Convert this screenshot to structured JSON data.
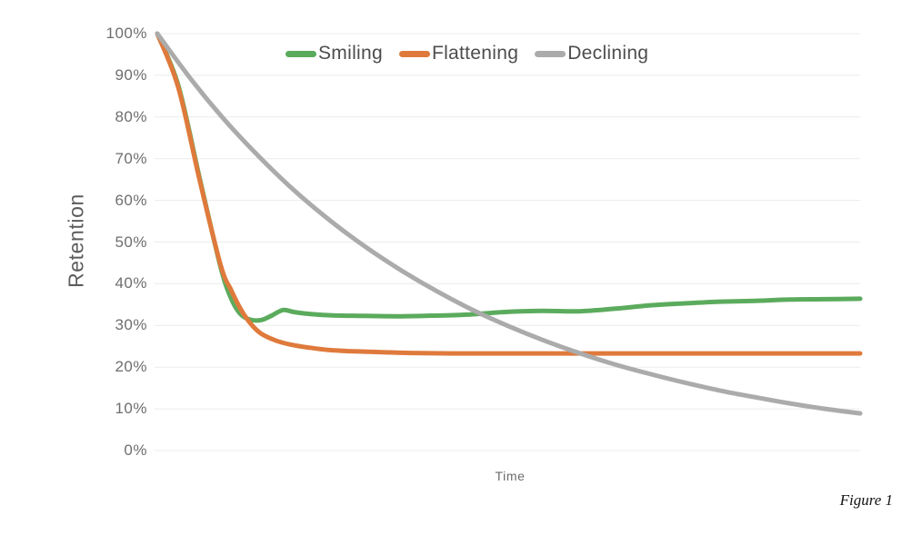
{
  "figure": {
    "caption": "Figure 1"
  },
  "axes": {
    "y_title": "Retention",
    "x_title": "Time",
    "y_ticks": [
      "100%",
      "90%",
      "80%",
      "70%",
      "60%",
      "50%",
      "40%",
      "30%",
      "20%",
      "10%",
      "0%"
    ]
  },
  "colors": {
    "smiling_green": "#5BAB5D",
    "flattening_orange": "#DF7A3C",
    "declining_gray": "#ABABAB",
    "gridline": "#ECECEC",
    "tick_text": "#6E6E6E",
    "legend_text": "#4D4D4D"
  },
  "chart_data": {
    "type": "line",
    "title": "",
    "xlabel": "Time",
    "ylabel": "Retention",
    "ylim": [
      0,
      100
    ],
    "xlim": [
      0,
      100
    ],
    "y_tick_labels": [
      "100%",
      "90%",
      "80%",
      "70%",
      "60%",
      "50%",
      "40%",
      "30%",
      "20%",
      "10%",
      "0%"
    ],
    "x_tick_labels": [],
    "grid": "horizontal-only",
    "legend_position": "top-center",
    "series": [
      {
        "name": "Smiling",
        "color": "#5BAB5D",
        "description": "Drops steeply from 100% to ~31%, small rebound bump to ~34%, plateaus near 32%, then gently climbs to ~36% by the end",
        "points": [
          [
            0,
            100
          ],
          [
            3,
            87.5
          ],
          [
            6,
            65.5
          ],
          [
            9,
            44
          ],
          [
            10.5,
            36.5
          ],
          [
            11.8,
            32.8
          ],
          [
            13.2,
            31.4
          ],
          [
            14.8,
            31.3
          ],
          [
            16.3,
            32.4
          ],
          [
            17.9,
            33.7
          ],
          [
            19.5,
            33.2
          ],
          [
            22,
            32.7
          ],
          [
            25,
            32.4
          ],
          [
            29,
            32.3
          ],
          [
            34,
            32.2
          ],
          [
            38,
            32.3
          ],
          [
            44,
            32.6
          ],
          [
            50,
            33.3
          ],
          [
            55,
            33.5
          ],
          [
            60,
            33.4
          ],
          [
            65,
            34.0
          ],
          [
            70,
            34.8
          ],
          [
            75,
            35.3
          ],
          [
            80,
            35.7
          ],
          [
            85,
            35.9
          ],
          [
            90,
            36.2
          ],
          [
            95,
            36.3
          ],
          [
            100,
            36.4
          ]
        ]
      },
      {
        "name": "Flattening",
        "color": "#DF7A3C",
        "description": "Drops steeply from 100% and flattens to a constant ~23%",
        "points": [
          [
            0,
            100
          ],
          [
            3,
            87
          ],
          [
            6,
            65
          ],
          [
            9,
            44.5
          ],
          [
            10.5,
            38.5
          ],
          [
            12,
            33.5
          ],
          [
            13.5,
            30
          ],
          [
            15,
            27.8
          ],
          [
            17,
            26.3
          ],
          [
            19,
            25.4
          ],
          [
            21.5,
            24.7
          ],
          [
            24.5,
            24.1
          ],
          [
            28,
            23.8
          ],
          [
            32,
            23.6
          ],
          [
            36,
            23.4
          ],
          [
            42,
            23.3
          ],
          [
            50,
            23.3
          ],
          [
            60,
            23.3
          ],
          [
            70,
            23.3
          ],
          [
            80,
            23.3
          ],
          [
            90,
            23.3
          ],
          [
            100,
            23.3
          ]
        ]
      },
      {
        "name": "Declining",
        "color": "#ABABAB",
        "description": "Smooth exponential decay from 100% down to ~9%",
        "points": [
          [
            0,
            100
          ],
          [
            5,
            88.6
          ],
          [
            10,
            78.5
          ],
          [
            15,
            69.6
          ],
          [
            20,
            61.6
          ],
          [
            25,
            54.6
          ],
          [
            30,
            48.4
          ],
          [
            35,
            42.9
          ],
          [
            40,
            38.0
          ],
          [
            45,
            33.6
          ],
          [
            50,
            29.8
          ],
          [
            55,
            26.4
          ],
          [
            60,
            23.4
          ],
          [
            65,
            20.7
          ],
          [
            70,
            18.4
          ],
          [
            75,
            16.3
          ],
          [
            80,
            14.4
          ],
          [
            85,
            12.8
          ],
          [
            90,
            11.3
          ],
          [
            95,
            10.0
          ],
          [
            100,
            8.9
          ]
        ]
      }
    ]
  }
}
